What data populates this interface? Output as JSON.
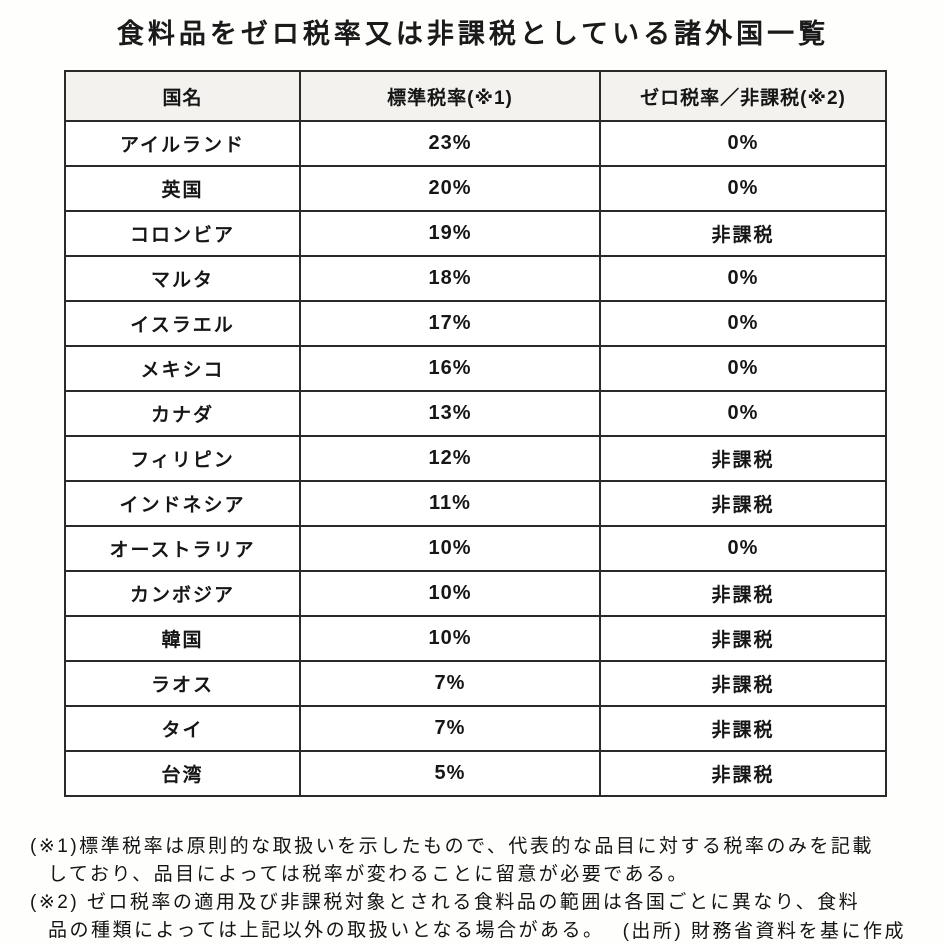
{
  "title": "食料品をゼロ税率又は非課税としている諸外国一覧",
  "table": {
    "headers": [
      "国名",
      "標準税率(※1)",
      "ゼロ税率／非課税(※2)"
    ],
    "rows": [
      {
        "country": "アイルランド",
        "standard_rate": "23%",
        "food_rate": "0%"
      },
      {
        "country": "英国",
        "standard_rate": "20%",
        "food_rate": "0%"
      },
      {
        "country": "コロンビア",
        "standard_rate": "19%",
        "food_rate": "非課税"
      },
      {
        "country": "マルタ",
        "standard_rate": "18%",
        "food_rate": "0%"
      },
      {
        "country": "イスラエル",
        "standard_rate": "17%",
        "food_rate": "0%"
      },
      {
        "country": "メキシコ",
        "standard_rate": "16%",
        "food_rate": "0%"
      },
      {
        "country": "カナダ",
        "standard_rate": "13%",
        "food_rate": "0%"
      },
      {
        "country": "フィリピン",
        "standard_rate": "12%",
        "food_rate": "非課税"
      },
      {
        "country": "インドネシア",
        "standard_rate": "11%",
        "food_rate": "非課税"
      },
      {
        "country": "オーストラリア",
        "standard_rate": "10%",
        "food_rate": "0%"
      },
      {
        "country": "カンボジア",
        "standard_rate": "10%",
        "food_rate": "非課税"
      },
      {
        "country": "韓国",
        "standard_rate": "10%",
        "food_rate": "非課税"
      },
      {
        "country": "ラオス",
        "standard_rate": "7%",
        "food_rate": "非課税"
      },
      {
        "country": "タイ",
        "standard_rate": "7%",
        "food_rate": "非課税"
      },
      {
        "country": "台湾",
        "standard_rate": "5%",
        "food_rate": "非課税"
      }
    ]
  },
  "footnotes": {
    "note1_line1": "(※1)標準税率は原則的な取扱いを示したもので、代表的な品目に対する税率のみを記載",
    "note1_line2": "しており、品目によっては税率が変わることに留意が必要である。",
    "note2_line1": "(※2) ゼロ税率の適用及び非課税対象とされる食料品の範囲は各国ごとに異なり、食料",
    "note2_line2": "品の種類によっては上記以外の取扱いとなる場合がある。",
    "source": "(出所) 財務省資料を基に作成"
  },
  "colors": {
    "border": "#2a2a2a",
    "header_background": "#f3f2ee",
    "text": "#151515"
  }
}
